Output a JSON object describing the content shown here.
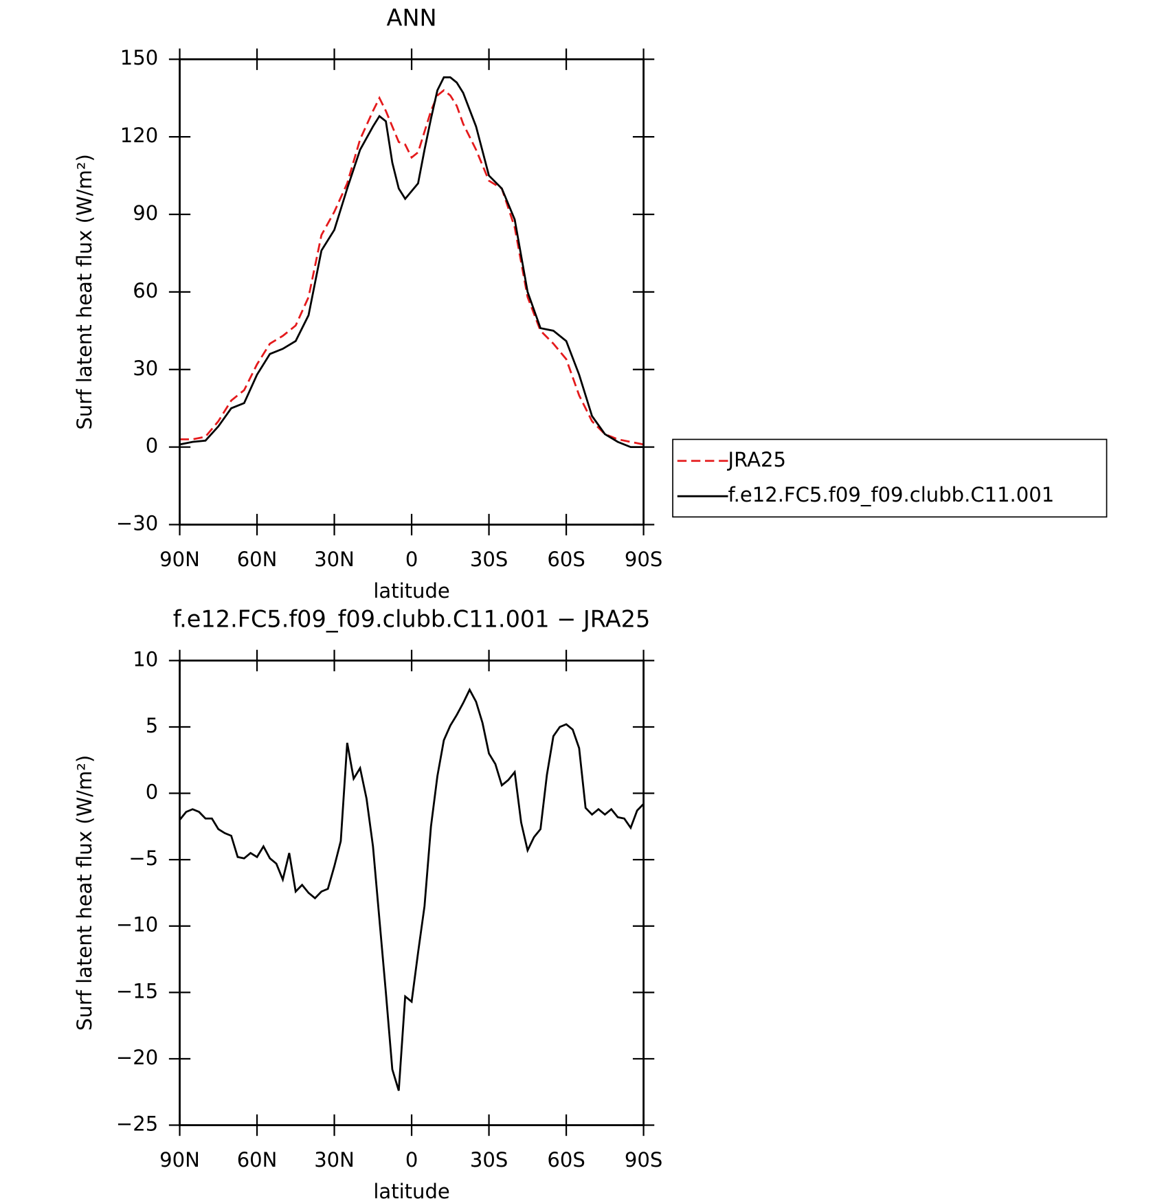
{
  "chart_data": [
    {
      "type": "line",
      "title": "ANN",
      "xlabel": "latitude",
      "ylabel": "Surf latent heat flux (W/m²)",
      "x": [
        90,
        85,
        80,
        75,
        70,
        65,
        60,
        55,
        50,
        45,
        40,
        35,
        30,
        25,
        20,
        15,
        12.5,
        10,
        7.5,
        5,
        2.5,
        0,
        -2.5,
        -5,
        -7.5,
        -10,
        -12.5,
        -15,
        -17.5,
        -20,
        -25,
        -30,
        -35,
        -40,
        -45,
        -50,
        -55,
        -60,
        -65,
        -70,
        -75,
        -80,
        -85,
        -90
      ],
      "series": [
        {
          "name": "JRA25",
          "color": "#e41a1c",
          "style": "dashed",
          "values": [
            3,
            3,
            4,
            10,
            18,
            22,
            32,
            40,
            43,
            47,
            58,
            82,
            91,
            102,
            119,
            130,
            135,
            130,
            124,
            118,
            117,
            112,
            114,
            122,
            130,
            136,
            138,
            136,
            132,
            125,
            115,
            103,
            100,
            85,
            58,
            45,
            40,
            34,
            20,
            10,
            5,
            3,
            2,
            1
          ]
        },
        {
          "name": "f.e12.FC5.f09_f09.clubb.C11.001",
          "color": "#000000",
          "style": "solid",
          "values": [
            1,
            2,
            2.5,
            8,
            15,
            17,
            28,
            36,
            38,
            41,
            51,
            76,
            84,
            100,
            115,
            124,
            128,
            126,
            110,
            100,
            96,
            99,
            102,
            115,
            127,
            138,
            143,
            143,
            141,
            137,
            124,
            105,
            100,
            88,
            60,
            46,
            45,
            41,
            28,
            12,
            5,
            2,
            0,
            0
          ]
        }
      ],
      "xlim": [
        90,
        -90
      ],
      "xticks": [
        {
          "value": 90,
          "label": "90N"
        },
        {
          "value": 60,
          "label": "60N"
        },
        {
          "value": 30,
          "label": "30N"
        },
        0,
        {
          "value": -30,
          "label": "30S"
        },
        {
          "value": -60,
          "label": "60S"
        },
        {
          "value": -90,
          "label": "90S"
        }
      ],
      "ylim": [
        -30,
        150
      ],
      "yticks": [
        {
          "value": -30,
          "label": "−30"
        },
        0,
        30,
        60,
        90,
        120,
        150
      ],
      "legend": "right"
    },
    {
      "type": "line",
      "title": "f.e12.FC5.f09_f09.clubb.C11.001 − JRA25",
      "xlabel": "latitude",
      "ylabel": "Surf latent heat flux (W/m²)",
      "x": [
        90,
        87.5,
        85,
        82.5,
        80,
        77.5,
        75,
        72.5,
        70,
        67.5,
        65,
        62.5,
        60,
        57.5,
        55,
        52.5,
        50,
        47.5,
        45,
        42.5,
        40,
        37.5,
        35,
        32.5,
        30,
        27.5,
        25,
        22.5,
        20,
        17.5,
        15,
        12.5,
        10,
        7.5,
        5,
        2.5,
        0,
        -2.5,
        -5,
        -7.5,
        -10,
        -12.5,
        -15,
        -17.5,
        -20,
        -22.5,
        -25,
        -27.5,
        -30,
        -32.5,
        -35,
        -37.5,
        -40,
        -42.5,
        -45,
        -47.5,
        -50,
        -52.5,
        -55,
        -57.5,
        -60,
        -62.5,
        -65,
        -67.5,
        -70,
        -72.5,
        -75,
        -77.5,
        -80,
        -82.5,
        -85,
        -87.5,
        -90
      ],
      "values": [
        -2,
        -1.4,
        -1.2,
        -1.4,
        -1.9,
        -1.9,
        -2.7,
        -3.0,
        -3.2,
        -4.8,
        -4.9,
        -4.5,
        -4.8,
        -4.0,
        -4.9,
        -5.3,
        -6.5,
        -4.5,
        -7.4,
        -6.9,
        -7.5,
        -7.9,
        -7.4,
        -7.2,
        -5.5,
        -3.6,
        3.8,
        1.1,
        1.9,
        -0.4,
        -4.0,
        -9.5,
        -15,
        -20.8,
        -22.4,
        -15.3,
        -15.7,
        -12,
        -8.5,
        -2.5,
        1.3,
        4.0,
        5.1,
        5.9,
        6.8,
        7.8,
        6.9,
        5.3,
        3.0,
        2.2,
        0.6,
        1.0,
        1.6,
        -2.2,
        -4.3,
        -3.3,
        -2.7,
        1.4,
        4.3,
        5.0,
        5.2,
        4.8,
        3.4,
        -1.1,
        -1.6,
        -1.2,
        -1.6,
        -1.2,
        -1.8,
        -1.9,
        -2.6,
        -1.3,
        -0.8
      ],
      "color": "#000000",
      "xlim": [
        90,
        -90
      ],
      "xticks": [
        {
          "value": 90,
          "label": "90N"
        },
        {
          "value": 60,
          "label": "60N"
        },
        {
          "value": 30,
          "label": "30N"
        },
        0,
        {
          "value": -30,
          "label": "30S"
        },
        {
          "value": -60,
          "label": "60S"
        },
        {
          "value": -90,
          "label": "90S"
        }
      ],
      "ylim": [
        -25,
        10
      ],
      "yticks": [
        {
          "value": -25,
          "label": "−25"
        },
        {
          "value": -20,
          "label": "−20"
        },
        {
          "value": -15,
          "label": "−15"
        },
        {
          "value": -10,
          "label": "−10"
        },
        {
          "value": -5,
          "label": "−5"
        },
        0,
        5,
        10
      ]
    }
  ]
}
